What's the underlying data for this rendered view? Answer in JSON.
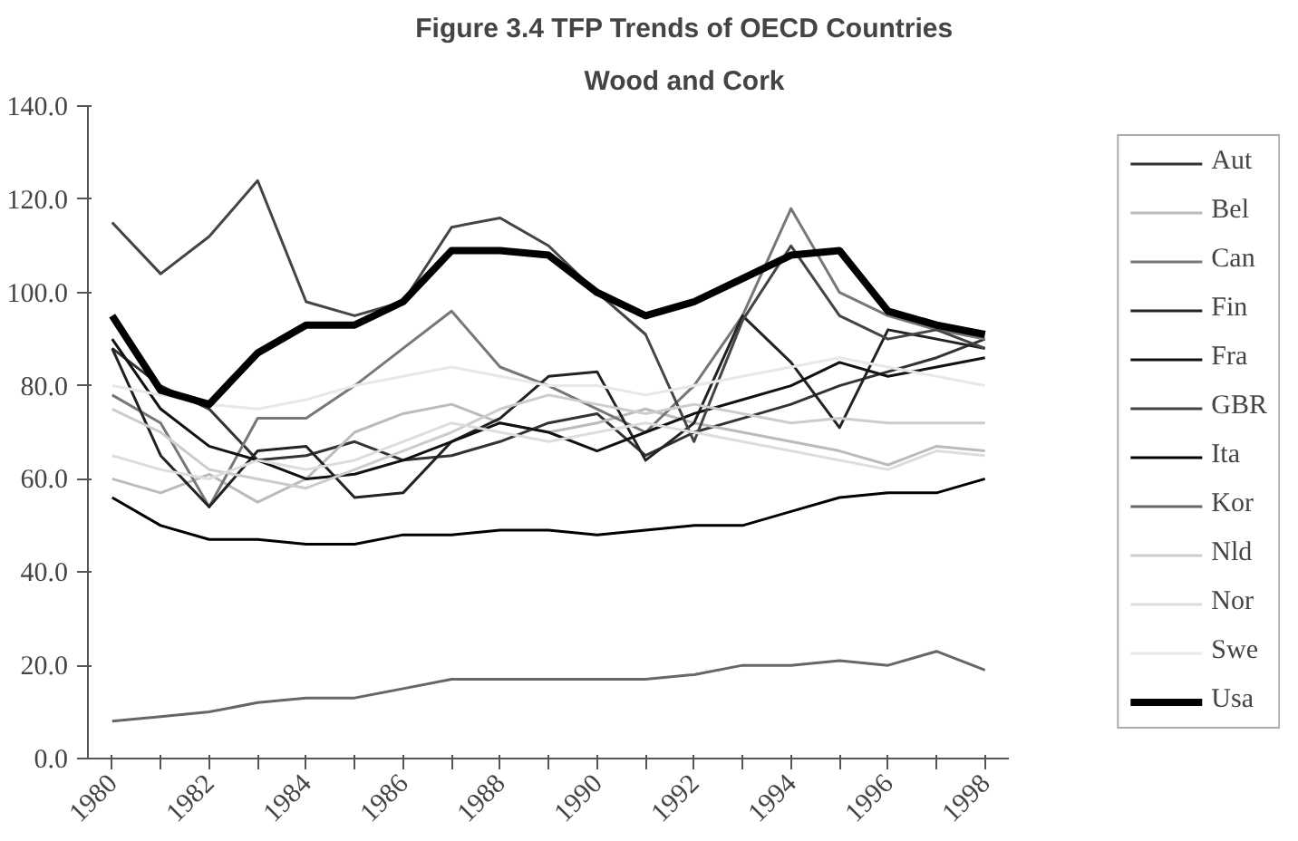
{
  "chart_data": {
    "type": "line",
    "title": "Figure 3.4 TFP Trends of OECD Countries",
    "subtitle": "Wood and Cork",
    "categories": [
      "1980",
      null,
      "1982",
      null,
      "1984",
      null,
      "1986",
      null,
      "1988",
      null,
      "1990",
      null,
      "1992",
      null,
      "1994",
      null,
      "1996",
      null,
      "1998"
    ],
    "ylim": [
      0,
      140
    ],
    "yticks": [
      {
        "value": 0,
        "label": "0.0"
      },
      {
        "value": 20,
        "label": "20.0"
      },
      {
        "value": 40,
        "label": "40.0"
      },
      {
        "value": 60,
        "label": "60.0"
      },
      {
        "value": 80,
        "label": "80.0"
      },
      {
        "value": 100,
        "label": "100.0"
      },
      {
        "value": 120,
        "label": "120.0"
      },
      {
        "value": 140,
        "label": "140.0"
      }
    ],
    "grid": false,
    "legend": "right",
    "marker": "none",
    "line_style": "solid",
    "series": [
      {
        "name": "Aut",
        "color": "#333333",
        "values": [
          88,
          80,
          75,
          64,
          65,
          68,
          64,
          65,
          68,
          72,
          74,
          65,
          70,
          73,
          76,
          80,
          83,
          86,
          90
        ]
      },
      {
        "name": "Bel",
        "color": "#bbbbbb",
        "values": [
          60,
          57,
          61,
          55,
          60,
          70,
          74,
          76,
          72,
          70,
          72,
          75,
          72,
          70,
          68,
          66,
          63,
          67,
          66
        ]
      },
      {
        "name": "Can",
        "color": "#777777",
        "values": [
          78,
          72,
          54,
          73,
          73,
          80,
          88,
          96,
          84,
          80,
          75,
          70,
          80,
          95,
          118,
          100,
          95,
          92,
          90
        ]
      },
      {
        "name": "Fin",
        "color": "#222222",
        "values": [
          88,
          65,
          54,
          66,
          67,
          56,
          57,
          68,
          73,
          82,
          83,
          64,
          72,
          95,
          85,
          71,
          92,
          90,
          88
        ]
      },
      {
        "name": "Fra",
        "color": "#111111",
        "values": [
          90,
          75,
          67,
          64,
          60,
          61,
          64,
          68,
          72,
          70,
          66,
          70,
          74,
          77,
          80,
          85,
          82,
          84,
          86
        ]
      },
      {
        "name": "GBR",
        "color": "#444444",
        "values": [
          115,
          104,
          112,
          124,
          98,
          95,
          98,
          114,
          116,
          110,
          100,
          91,
          68,
          94,
          110,
          95,
          90,
          92,
          88
        ]
      },
      {
        "name": "Ita",
        "color": "#000000",
        "values": [
          56,
          50,
          47,
          47,
          46,
          46,
          48,
          48,
          49,
          49,
          48,
          49,
          50,
          50,
          53,
          56,
          57,
          57,
          60
        ]
      },
      {
        "name": "Kor",
        "color": "#666666",
        "values": [
          8,
          9,
          10,
          12,
          13,
          13,
          15,
          17,
          17,
          17,
          17,
          17,
          18,
          20,
          20,
          21,
          20,
          23,
          19
        ]
      },
      {
        "name": "Nld",
        "color": "#cccccc",
        "values": [
          75,
          70,
          62,
          60,
          58,
          62,
          66,
          70,
          75,
          78,
          76,
          74,
          76,
          74,
          72,
          73,
          72,
          72,
          72
        ]
      },
      {
        "name": "Nor",
        "color": "#dddddd",
        "values": [
          65,
          62,
          60,
          64,
          62,
          64,
          68,
          72,
          70,
          68,
          70,
          72,
          70,
          68,
          66,
          64,
          62,
          66,
          65
        ]
      },
      {
        "name": "Swe",
        "color": "#e8e8e8",
        "values": [
          80,
          78,
          76,
          75,
          77,
          80,
          82,
          84,
          82,
          80,
          80,
          78,
          80,
          82,
          84,
          86,
          84,
          82,
          80
        ]
      },
      {
        "name": "Usa",
        "color": "#000000",
        "values": [
          95,
          79,
          76,
          87,
          93,
          93,
          98,
          109,
          109,
          108,
          100,
          95,
          98,
          103,
          108,
          109,
          96,
          93,
          91
        ]
      }
    ]
  }
}
